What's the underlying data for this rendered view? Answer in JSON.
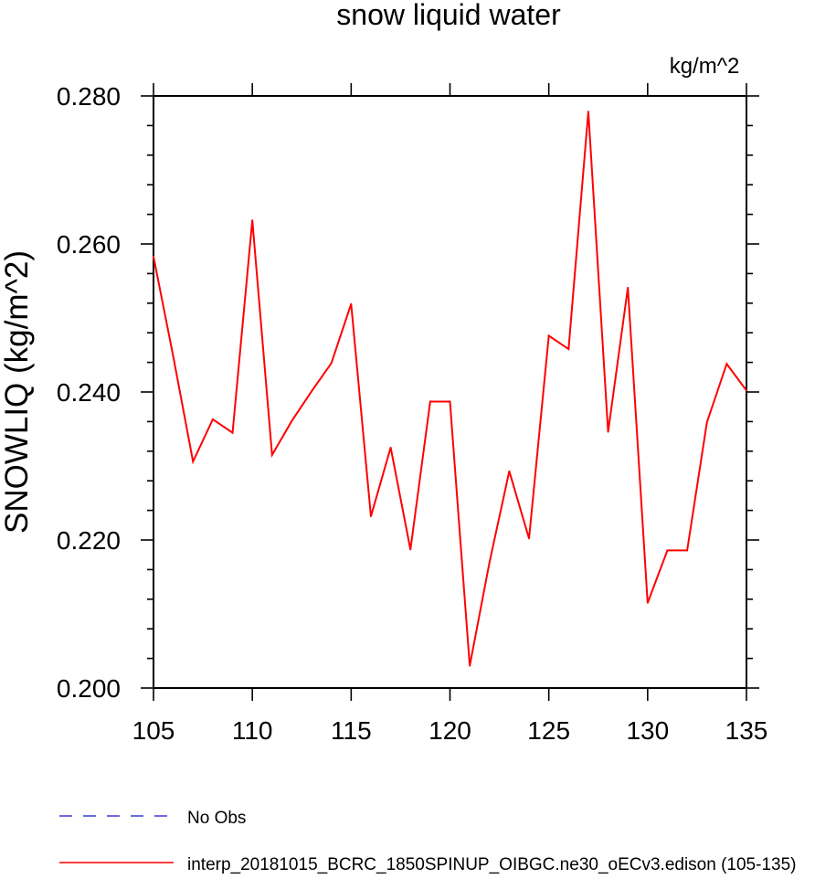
{
  "chart_data": {
    "type": "line",
    "title": "snow liquid water",
    "units_label": "kg/m^2",
    "xlabel": "",
    "ylabel": "SNOWLIQ  (kg/m^2)",
    "xlim": [
      105,
      135
    ],
    "ylim": [
      0.2,
      0.28
    ],
    "x_ticks": [
      105,
      110,
      115,
      120,
      125,
      130,
      135
    ],
    "x_tick_labels": [
      "105",
      "110",
      "115",
      "120",
      "125",
      "130",
      "135"
    ],
    "y_ticks": [
      0.2,
      0.22,
      0.24,
      0.26,
      0.28
    ],
    "y_tick_labels": [
      "0.200",
      "0.220",
      "0.240",
      "0.260",
      "0.280"
    ],
    "grid": false,
    "legend_position": "bottom-left",
    "series": [
      {
        "name": "No Obs",
        "color": "#3b3bd6",
        "line_style": "dashed",
        "x": [],
        "values": []
      },
      {
        "name": "interp_20181015_BCRC_1850SPINUP_OIBGC.ne30_oECv3.edison (105-135)",
        "color": "#ff0000",
        "line_style": "solid",
        "x": [
          105,
          106,
          107,
          108,
          109,
          110,
          111,
          112,
          113,
          114,
          115,
          116,
          117,
          118,
          119,
          120,
          121,
          122,
          123,
          124,
          125,
          126,
          127,
          128,
          129,
          130,
          131,
          132,
          133,
          134,
          135
        ],
        "values": [
          0.2583,
          0.2448,
          0.2306,
          0.2363,
          0.2345,
          0.2632,
          0.2315,
          0.2361,
          0.2401,
          0.2439,
          0.2519,
          0.2232,
          0.2325,
          0.2187,
          0.2387,
          0.2387,
          0.203,
          0.217,
          0.2293,
          0.2202,
          0.2476,
          0.2458,
          0.2779,
          0.2346,
          0.2541,
          0.2115,
          0.2186,
          0.2186,
          0.2359,
          0.2438,
          0.2402
        ]
      }
    ]
  }
}
